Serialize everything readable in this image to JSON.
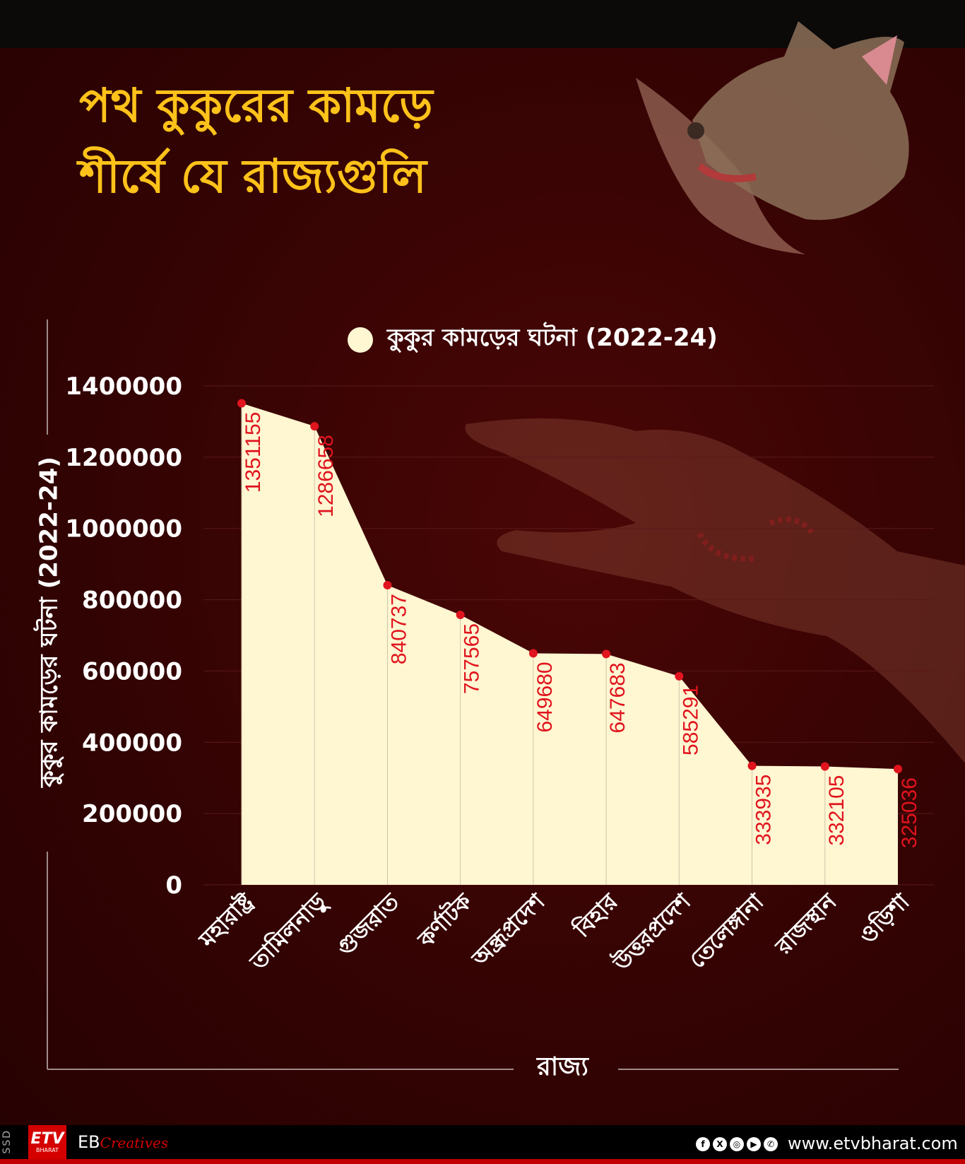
{
  "title": {
    "line1": "পথ কুকুরের কামড়ে",
    "line2": "শীর্ষে যে রাজ্যগুলি"
  },
  "footer": {
    "ssd": "SSD",
    "logo": "ETV",
    "logo_sub": "BHARAT",
    "eb": "EB",
    "creatives": "Creatives",
    "site": "www.etvbharat.com",
    "social_icons": [
      "facebook-icon",
      "x-icon",
      "instagram-icon",
      "youtube-icon",
      "whatsapp-icon"
    ]
  },
  "colors": {
    "title": "#ffc21a",
    "area": "#fff6d2",
    "marker": "#e0141e",
    "label": "#e0141e",
    "background": "#340303"
  },
  "chart_data": {
    "type": "area",
    "legend": "কুকুর কামড়ের ঘটনা (2022-24)",
    "legend_position": "top",
    "xlabel": "রাজ্য",
    "ylabel": "কুকুর কামড়ের ঘটনা (2022-24)",
    "ylim": [
      0,
      1400000
    ],
    "yticks": [
      "0",
      "200000",
      "400000",
      "600000",
      "800000",
      "1000000",
      "1200000",
      "1400000"
    ],
    "grid": true,
    "categories": [
      "মহারাষ্ট্র",
      "তামিলনাড়ু",
      "গুজরাত",
      "কর্ণাটক",
      "অন্ধ্রপ্রদেশ",
      "বিহার",
      "উত্তরপ্রদেশ",
      "তেলেঙ্গানা",
      "রাজস্থান",
      "ওড়িশা"
    ],
    "series": [
      {
        "name": "কুকুর কামড়ের ঘটনা (2022-24)",
        "values": [
          1351155,
          1286658,
          840737,
          757565,
          649680,
          647683,
          585291,
          333935,
          332105,
          325036
        ]
      }
    ],
    "data_labels": [
      "1351155",
      "1286658",
      "840737",
      "757565",
      "649680",
      "647683",
      "585291",
      "333935",
      "332105",
      "325036"
    ]
  }
}
